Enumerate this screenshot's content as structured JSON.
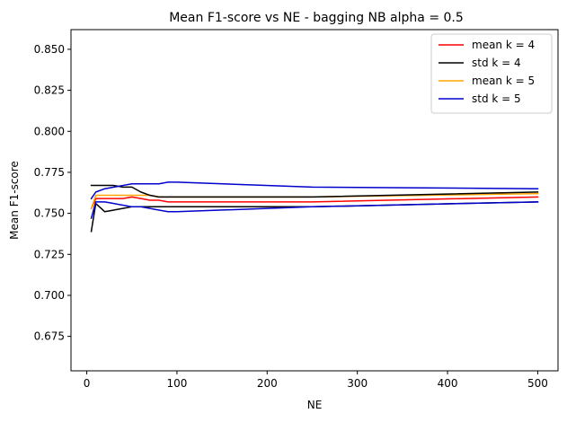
{
  "chart_data": {
    "type": "line",
    "title": "Mean F1-score vs NE - bagging NB alpha = 0.5",
    "xlabel": "NE",
    "ylabel": "Mean F1-score",
    "xlim": [
      -17.5,
      522.5
    ],
    "ylim": [
      0.654,
      0.862
    ],
    "xticks": [
      0,
      100,
      200,
      300,
      400,
      500
    ],
    "yticks": [
      0.675,
      0.7,
      0.725,
      0.75,
      0.775,
      0.8,
      0.825,
      0.85
    ],
    "ytick_labels": [
      "0.675",
      "0.700",
      "0.725",
      "0.750",
      "0.775",
      "0.800",
      "0.825",
      "0.850"
    ],
    "legend_position": "top-right",
    "grid": false,
    "series": [
      {
        "name": "mean k = 4",
        "color": "#ff0000",
        "x": [
          5,
          10,
          20,
          30,
          40,
          50,
          60,
          70,
          80,
          90,
          100,
          250,
          500
        ],
        "y": [
          0.753,
          0.759,
          0.759,
          0.759,
          0.759,
          0.76,
          0.759,
          0.758,
          0.758,
          0.757,
          0.757,
          0.757,
          0.76
        ]
      },
      {
        "name": "std k = 4",
        "color": "#000000",
        "x": [
          5,
          10,
          20,
          30,
          40,
          50,
          60,
          70,
          80,
          90,
          100,
          250,
          500
        ],
        "y": [
          0.739,
          0.756,
          0.751,
          0.752,
          0.753,
          0.754,
          0.754,
          0.754,
          0.754,
          0.754,
          0.754,
          0.754,
          0.757
        ]
      },
      {
        "name": "mean k = 5",
        "color": "#ffa500",
        "x": [
          5,
          10,
          20,
          30,
          40,
          50,
          60,
          70,
          80,
          90,
          100,
          250,
          500
        ],
        "y": [
          0.753,
          0.761,
          0.761,
          0.761,
          0.761,
          0.761,
          0.761,
          0.761,
          0.76,
          0.76,
          0.76,
          0.76,
          0.762
        ]
      },
      {
        "name": "std k = 5",
        "color": "#0000cd",
        "x": [
          5,
          10,
          20,
          30,
          40,
          50,
          60,
          70,
          80,
          90,
          100,
          250,
          500
        ],
        "y": [
          0.747,
          0.757,
          0.757,
          0.756,
          0.755,
          0.754,
          0.754,
          0.753,
          0.752,
          0.751,
          0.751,
          0.754,
          0.757
        ]
      },
      {
        "name": "std k = 4 (upper)",
        "legend": false,
        "color": "#000000",
        "x": [
          5,
          10,
          20,
          30,
          40,
          50,
          60,
          70,
          80,
          90,
          100,
          250,
          500
        ],
        "y": [
          0.767,
          0.767,
          0.767,
          0.767,
          0.766,
          0.766,
          0.763,
          0.761,
          0.76,
          0.76,
          0.76,
          0.76,
          0.763
        ]
      },
      {
        "name": "std k = 5 (upper)",
        "legend": false,
        "color": "#0000cd",
        "x": [
          5,
          10,
          20,
          30,
          40,
          50,
          60,
          70,
          80,
          90,
          100,
          250,
          500
        ],
        "y": [
          0.759,
          0.763,
          0.765,
          0.766,
          0.767,
          0.768,
          0.768,
          0.768,
          0.768,
          0.769,
          0.769,
          0.766,
          0.765
        ]
      }
    ]
  }
}
